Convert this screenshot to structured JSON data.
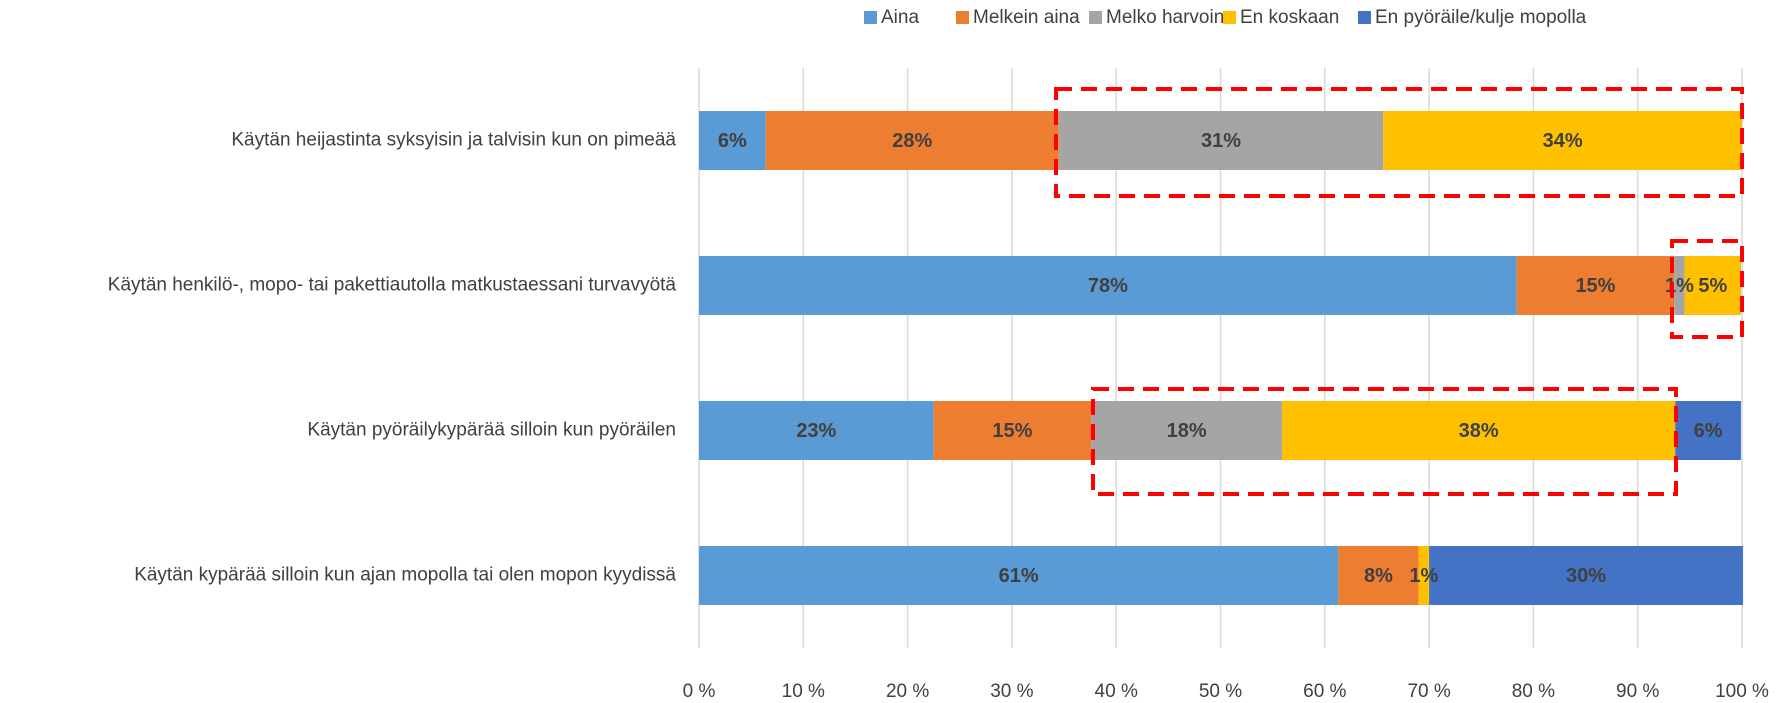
{
  "chart_data": {
    "type": "stacked_barh",
    "categories": [
      "Käytän heijastinta syksyisin ja talvisin kun on pimeää",
      "Käytän henkilö-, mopo- tai pakettiautolla matkustaessani turvavyötä",
      "Käytän pyöräilykypärää silloin kun pyöräilen",
      "Käytän kypärää silloin kun ajan mopolla tai olen mopon kyydissä"
    ],
    "series": [
      {
        "name": "Aina",
        "color": "#5b9bd5",
        "values": [
          6.4,
          78.4,
          22.5,
          61.3
        ],
        "value_labels": [
          "6%",
          "78%",
          "23%",
          "61%"
        ]
      },
      {
        "name": "Melkein aina",
        "color": "#ed7d31",
        "values": [
          28.1,
          15.1,
          15.1,
          7.7
        ],
        "value_labels": [
          "28%",
          "15%",
          "15%",
          "8%"
        ]
      },
      {
        "name": "Melko harvoin",
        "color": "#a5a5a5",
        "values": [
          31.1,
          1.0,
          18.3,
          null
        ],
        "value_labels": [
          "31%",
          "1%",
          "18%",
          null
        ]
      },
      {
        "name": "En koskaan",
        "color": "#ffc000",
        "values": [
          34.4,
          5.4,
          37.7,
          1.0
        ],
        "value_labels": [
          "34%",
          "5%",
          "38%",
          "1%"
        ]
      },
      {
        "name": "En pyöräile/kulje mopolla",
        "color": "#4472c4",
        "values": [
          null,
          null,
          6.3,
          30.1
        ],
        "value_labels": [
          null,
          null,
          "6%",
          "30%"
        ]
      }
    ],
    "xlim": [
      0,
      100
    ],
    "xticks": [
      {
        "value": 0,
        "label": "0 %"
      },
      {
        "value": 10,
        "label": "10 %"
      },
      {
        "value": 20,
        "label": "20 %"
      },
      {
        "value": 30,
        "label": "30 %"
      },
      {
        "value": 40,
        "label": "40 %"
      },
      {
        "value": 50,
        "label": "50 %"
      },
      {
        "value": 60,
        "label": "60 %"
      },
      {
        "value": 70,
        "label": "70 %"
      },
      {
        "value": 80,
        "label": "80 %"
      },
      {
        "value": 90,
        "label": "90 %"
      },
      {
        "value": 100,
        "label": "100 %"
      }
    ],
    "grid": true,
    "legend": "top-right"
  }
}
